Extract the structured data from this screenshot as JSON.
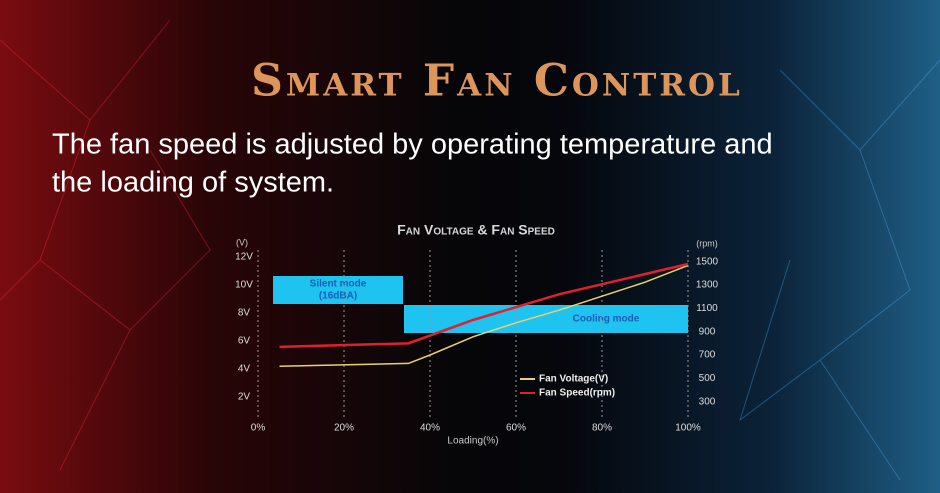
{
  "header": {
    "title": "Smart Fan Control",
    "subtitle_lines": [
      "The fan speed is adjusted by operating temperature and",
      "the loading of system."
    ]
  },
  "chart_data": {
    "type": "line",
    "title": "Fan Voltage & Fan Speed",
    "x_label": "Loading(%)",
    "y_label": "(V)",
    "y2_label": "(rpm)",
    "xlim": [
      0,
      100
    ],
    "xticks": [
      {
        "value": 0,
        "label": "0%"
      },
      {
        "value": 20,
        "label": "20%"
      },
      {
        "value": 40,
        "label": "40%"
      },
      {
        "value": 60,
        "label": "60%"
      },
      {
        "value": 80,
        "label": "80%"
      },
      {
        "value": 100,
        "label": "100%"
      }
    ],
    "ylim": [
      0,
      12.5
    ],
    "yticks": [
      {
        "value": 2,
        "label": "2V"
      },
      {
        "value": 4,
        "label": "4V"
      },
      {
        "value": 6,
        "label": "6V"
      },
      {
        "value": 8,
        "label": "8V"
      },
      {
        "value": 10,
        "label": "10V"
      },
      {
        "value": 12,
        "label": "12V"
      }
    ],
    "y2lim": [
      100,
      1600
    ],
    "y2ticks": [
      300,
      500,
      700,
      900,
      1100,
      1300,
      1500
    ],
    "grid": true,
    "series": [
      {
        "name": "Fan Voltage(V)",
        "color": "#e8d36a",
        "x": [
          5,
          35,
          40,
          50,
          60,
          70,
          80,
          90,
          100
        ],
        "values": [
          4.2,
          4.4,
          5,
          6.3,
          7.3,
          8.2,
          9.2,
          10.2,
          11.4
        ]
      },
      {
        "name": "Fan Speed(rpm)",
        "color": "#e0202a",
        "axis": "y2",
        "x": [
          5,
          35,
          50,
          70,
          100
        ],
        "values": [
          770,
          800,
          1000,
          1220,
          1480
        ]
      }
    ],
    "annotations": [
      {
        "text": [
          "Silent mode",
          "(16dBA)"
        ]
      },
      {
        "text": [
          "Cooling mode"
        ]
      }
    ]
  }
}
